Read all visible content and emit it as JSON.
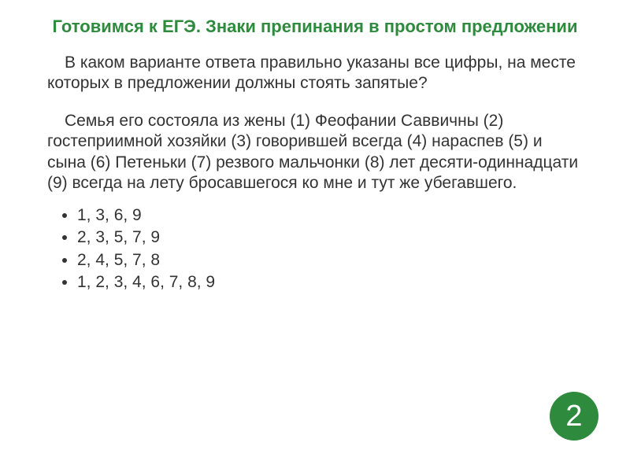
{
  "title": "Готовимся к ЕГЭ.  Знаки препинания в простом предложении",
  "question": "В каком варианте ответа правильно указаны все цифры, на месте которых в предложении должны стоять запятые?",
  "sentence": "Семья его состояла из жены (1) Феофании Саввичны (2) гостеприимной хозяйки (3) говорившей всегда (4) нараспев (5) и сына (6) Петеньки (7) резвого мальчонки (8) лет десяти-одиннадцати (9) всегда на лету бросавшегося ко мне и тут же убегавшего.",
  "options": [
    "1, 3, 6, 9",
    "2, 3, 5, 7, 9",
    "2, 4, 5, 7, 8",
    "1, 2, 3, 4, 6, 7, 8, 9"
  ],
  "answer_badge": "2",
  "colors": {
    "title_color": "#2e8b3d",
    "text_color": "#333333",
    "badge_bg": "#2e8b3d",
    "badge_text": "#ffffff",
    "page_bg": "#ffffff"
  },
  "typography": {
    "title_fontsize": 22,
    "body_fontsize": 21,
    "badge_fontsize": 38,
    "font_family": "Arial"
  }
}
